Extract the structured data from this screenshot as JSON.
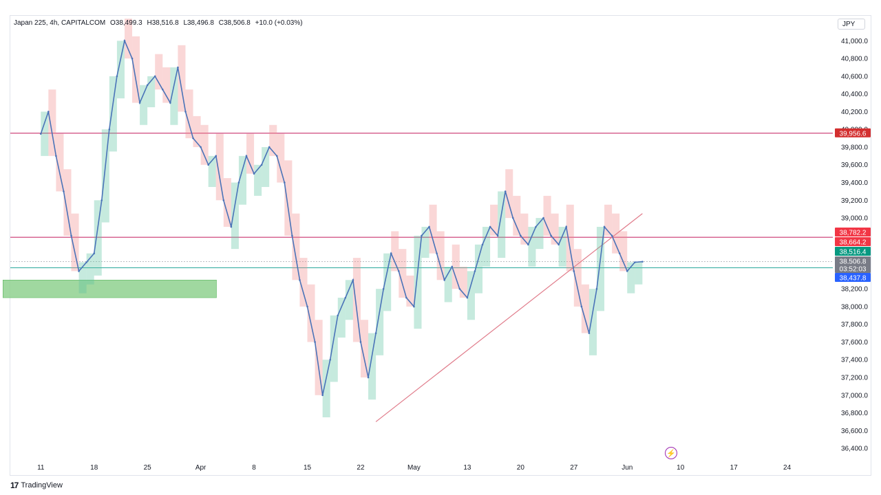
{
  "header": {
    "symbol": "Japan 225, 4h, CAPITALCOM",
    "open": "O38,499.3",
    "high": "H38,516.8",
    "low": "L38,496.8",
    "close": "C38,506.8",
    "change": "+10.0 (+0.03%)"
  },
  "currency": "JPY",
  "branding": "TradingView",
  "colors": {
    "up_candle": "#4a73b8",
    "band_red": "#f28b8b",
    "band_green": "#5cc4a0",
    "resistance_line": "#c2185b",
    "support_zone": "#8fd18f",
    "trendline": "#e07b8a"
  },
  "chart_data": {
    "type": "line",
    "title": "",
    "xlabel": "",
    "ylabel": "",
    "ylim": [
      36300,
      41150
    ],
    "y_ticks": [
      "41,000.0",
      "40,800.0",
      "40,600.0",
      "40,400.0",
      "40,200.0",
      "40,000.0",
      "39,800.0",
      "39,600.0",
      "39,400.0",
      "39,200.0",
      "39,000.0",
      "38,200.0",
      "38,000.0",
      "37,800.0",
      "37,600.0",
      "37,400.0",
      "37,200.0",
      "37,000.0",
      "36,800.0",
      "36,600.0",
      "36,400.0"
    ],
    "y_tick_values": [
      41000,
      40800,
      40600,
      40400,
      40200,
      40000,
      39800,
      39600,
      39400,
      39200,
      39000,
      38200,
      38000,
      37800,
      37600,
      37400,
      37200,
      37000,
      36800,
      36600,
      36400
    ],
    "x_ticks": [
      "11",
      "18",
      "25",
      "Apr",
      "8",
      "15",
      "22",
      "May",
      "13",
      "20",
      "27",
      "Jun",
      "10",
      "17",
      "24"
    ],
    "x_tick_positions": [
      0,
      7,
      14,
      21,
      28,
      35,
      42,
      49,
      56,
      63,
      70,
      77,
      84,
      91,
      98
    ],
    "series": [
      {
        "x": [
          0,
          1,
          2,
          3,
          4,
          5,
          6,
          7,
          8,
          9,
          10,
          11,
          12,
          13,
          14,
          15,
          16,
          17,
          18,
          19,
          20,
          21,
          22,
          23,
          24,
          25,
          26,
          27,
          28,
          29,
          30,
          31,
          32,
          33,
          34,
          35,
          36,
          37,
          38,
          39,
          40,
          41,
          42,
          43,
          44,
          45,
          46,
          47,
          48,
          49,
          50,
          51,
          52,
          53,
          54,
          55,
          56,
          57,
          58,
          59,
          60,
          61,
          62,
          63,
          64,
          65,
          66,
          67,
          68,
          69,
          70,
          71,
          72,
          73,
          74,
          75,
          76,
          77,
          78,
          79
        ],
        "values": [
          39950,
          40200,
          39700,
          39300,
          38800,
          38400,
          38500,
          38600,
          39200,
          40000,
          40600,
          41000,
          40800,
          40300,
          40500,
          40600,
          40450,
          40300,
          40700,
          40200,
          39900,
          39800,
          39600,
          39700,
          39200,
          38900,
          39400,
          39700,
          39500,
          39600,
          39800,
          39700,
          39400,
          38800,
          38300,
          38000,
          37600,
          37000,
          37400,
          37900,
          38100,
          38300,
          37600,
          37200,
          37700,
          38200,
          38600,
          38400,
          38100,
          38000,
          38800,
          38900,
          38600,
          38300,
          38450,
          38200,
          38100,
          38400,
          38700,
          38900,
          38800,
          39300,
          39000,
          38800,
          38700,
          38900,
          39000,
          38800,
          38700,
          38900,
          38400,
          38000,
          37700,
          38200,
          38900,
          38800,
          38600,
          38400,
          38500,
          38506.8
        ]
      }
    ],
    "annotations": [
      {
        "label": "39,956.6",
        "value": 39956.6,
        "color": "#d32f2f"
      },
      {
        "label": "38,782.2",
        "value": 38782.2,
        "color": "#f23645"
      },
      {
        "label": "38,664.2",
        "value": 38664.2,
        "color": "#f23645"
      },
      {
        "label": "38,516.4",
        "value": 38516.4,
        "color": "#089981"
      },
      {
        "label": "38,506.8",
        "value": 38506.8,
        "color": "#787b86"
      },
      {
        "label": "03:52:03",
        "value": 38420,
        "color": "#787b86"
      },
      {
        "label": "38,437.8",
        "value": 38437.8,
        "color": "#2962ff"
      }
    ],
    "resistance_levels": [
      39956.6,
      38782.2
    ],
    "support_level": 38437.8,
    "support_zone": {
      "x_start": 0,
      "x_end": 35,
      "y_low": 38100,
      "y_high": 38300
    },
    "trendline": {
      "x1": 44,
      "y1": 36700,
      "x2": 79,
      "y2": 39050
    },
    "grid": false,
    "legend": "none"
  }
}
